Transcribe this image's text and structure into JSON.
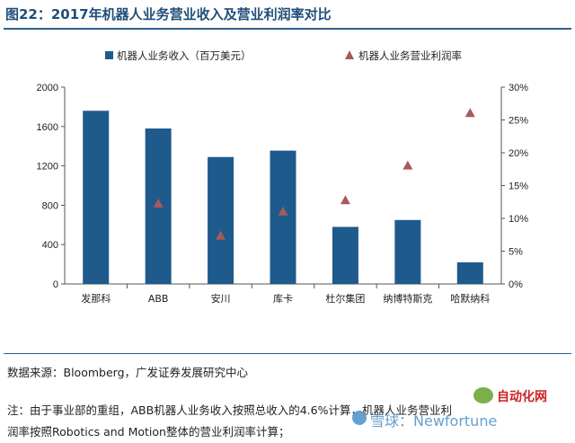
{
  "header": {
    "title": "图22：2017年机器人业务营业收入及营业利润率对比"
  },
  "chart_data": {
    "type": "bar",
    "categories": [
      "发那科",
      "ABB",
      "安川",
      "库卡",
      "杜尔集团",
      "纳博特斯克",
      "哈默纳科"
    ],
    "series": [
      {
        "name": "机器人业务收入（百万美元）",
        "type": "bar",
        "axis": "left",
        "color": "#1f5a8c",
        "values": [
          1760,
          1580,
          1290,
          1355,
          580,
          650,
          220
        ]
      },
      {
        "name": "机器人业务营业利润率",
        "type": "scatter",
        "axis": "right",
        "color": "#a85a5a",
        "values": [
          null,
          12.2,
          7.3,
          11.0,
          12.7,
          18.0,
          26.0
        ]
      }
    ],
    "y_left": {
      "min": 0,
      "max": 2000,
      "ticks": [
        "0",
        "400",
        "800",
        "1200",
        "1600",
        "2000"
      ]
    },
    "y_right": {
      "min": 0,
      "max": 30,
      "ticks": [
        "0%",
        "5%",
        "10%",
        "15%",
        "20%",
        "25%",
        "30%"
      ]
    },
    "legend_position": "top",
    "grid": false
  },
  "footer": {
    "source": "数据来源：Bloomberg，广发证券发展研究中心",
    "note_line1": "注：由于事业部的重组，ABB机器人业务收入按照总收入的4.6%计算，机器人业务营业利",
    "note_line2": "润率按照Robotics and Motion整体的营业利润率计算；"
  },
  "watermark": {
    "account": "自动化网",
    "site": "雪球：Newfortune"
  }
}
